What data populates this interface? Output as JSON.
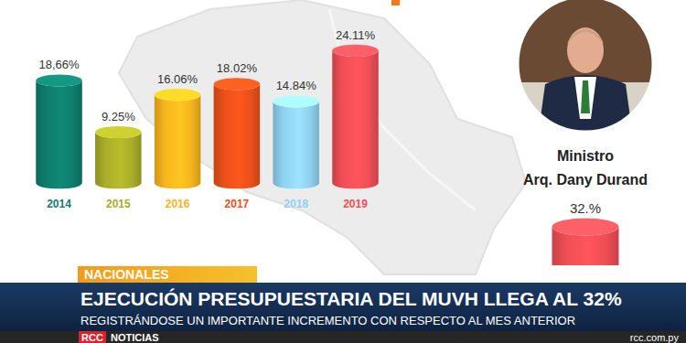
{
  "chart_data": [
    {
      "type": "bar",
      "categories": [
        "2014",
        "2015",
        "2016",
        "2017",
        "2018",
        "2019"
      ],
      "values": [
        18.66,
        9.25,
        16.06,
        18.02,
        14.84,
        24.11
      ],
      "value_labels": [
        "18,66%",
        "9.25%",
        "16.06%",
        "18.02%",
        "14.84%",
        "24.11%"
      ],
      "colors": [
        "#0f7d6c",
        "#a9ad28",
        "#f6b51e",
        "#e9501a",
        "#8fd1f0",
        "#f04e55"
      ],
      "ylim": [
        0,
        25
      ],
      "data_labels": true,
      "tick_labels": "x"
    },
    {
      "type": "bar",
      "title": "Ministro",
      "subtitle": "Arq. Dany Durand",
      "categories": [
        null
      ],
      "values": [
        32
      ],
      "value_labels": [
        "32.%"
      ],
      "color": "#f04e55",
      "ylim": [
        0,
        32
      ],
      "data_labels": true,
      "tick_labels": false
    }
  ],
  "banner": {
    "section": "NACIONALES",
    "headline": "EJECUCIÓN PRESUPUESTARIA DEL MUVH LLEGA AL 32%",
    "subheadline": "REGISTRÁNDOSE UN IMPORTANTE INCREMENTO CON RESPECTO AL MES ANTERIOR",
    "logo_brand": "RCC",
    "logo_text": "NOTICIAS",
    "website": "rcc.com.py"
  }
}
